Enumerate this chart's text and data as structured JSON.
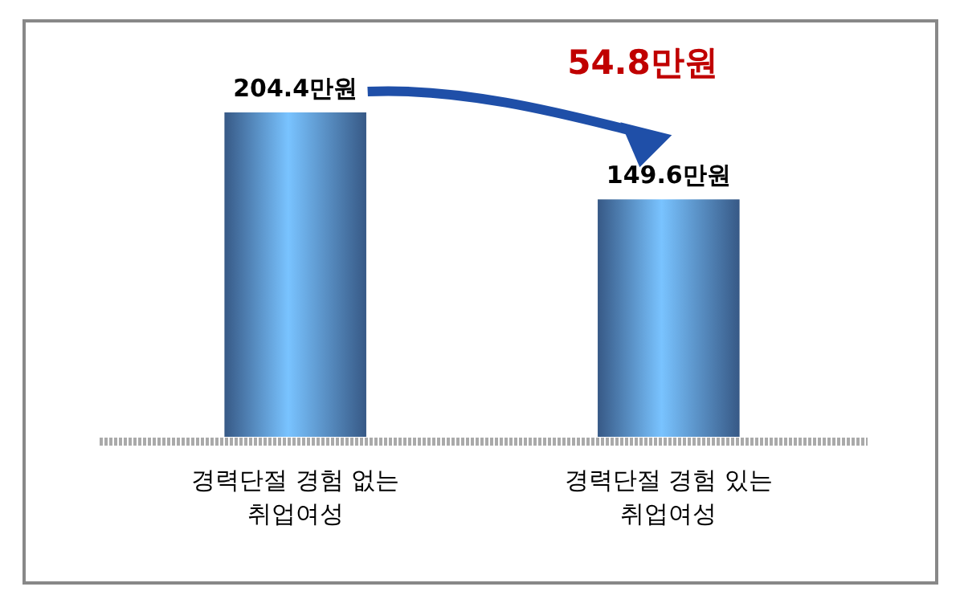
{
  "chart_data": {
    "type": "bar",
    "categories": [
      "경력단절 경험 없는 취업여성",
      "경력단절 경험 있는 취업여성"
    ],
    "values": [
      204.4,
      149.6
    ],
    "value_labels": [
      "204.4만원",
      "149.6만원"
    ],
    "color": "#4f7fc0",
    "annotations": [
      "54.8만원"
    ]
  }
}
